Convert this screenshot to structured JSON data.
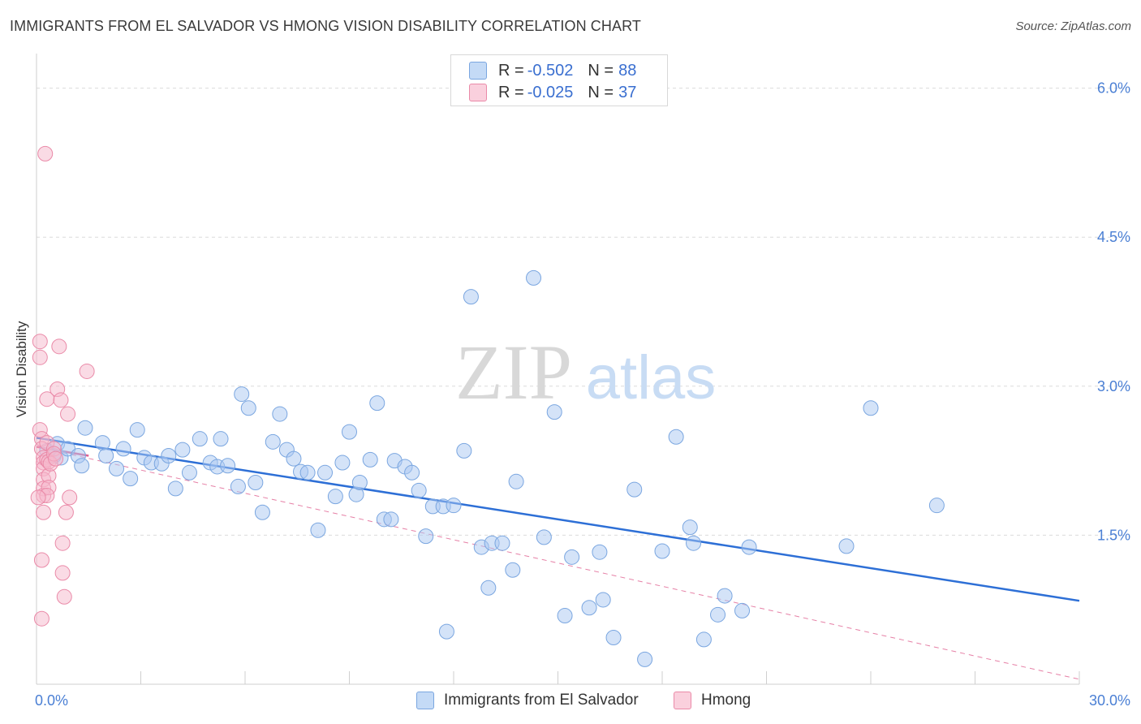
{
  "header": {
    "title": "IMMIGRANTS FROM EL SALVADOR VS HMONG VISION DISABILITY CORRELATION CHART",
    "source": "Source: ZipAtlas.com"
  },
  "watermark": {
    "zip": "ZIP",
    "atlas": "atlas"
  },
  "legend": {
    "rows": [
      {
        "r_label": "R =",
        "r_value": "-0.502",
        "n_label": "N =",
        "n_value": "88",
        "color": "#a9c8f2"
      },
      {
        "r_label": "R =",
        "r_value": "-0.025",
        "n_label": "N =",
        "n_value": "37",
        "color": "#f6b8cb"
      }
    ]
  },
  "bottom_legend": {
    "series1": "Immigrants from El Salvador",
    "series2": "Hmong"
  },
  "colors": {
    "blue_fill": "#a9c8f2",
    "blue_stroke": "#7aa6e0",
    "blue_line": "#2d6fd6",
    "pink_fill": "#f6b8cb",
    "pink_stroke": "#ea8aa8",
    "pink_line": "#e06090",
    "tick": "#4a7fd4"
  },
  "chart_data": {
    "type": "scatter",
    "title": "IMMIGRANTS FROM EL SALVADOR VS HMONG VISION DISABILITY CORRELATION CHART",
    "xlabel": "",
    "ylabel": "Vision Disability",
    "xlim": [
      0,
      30
    ],
    "ylim": [
      0,
      6.25
    ],
    "x_tick_labels": [
      "0.0%",
      "30.0%"
    ],
    "y_ticks": [
      1.5,
      3.0,
      4.5,
      6.0
    ],
    "y_tick_labels": [
      "1.5%",
      "3.0%",
      "4.5%",
      "6.0%"
    ],
    "series": [
      {
        "name": "Immigrants from El Salvador",
        "r": -0.502,
        "n": 88,
        "trend": {
          "x": [
            0,
            30
          ],
          "y": [
            2.48,
            0.84
          ]
        },
        "points": [
          [
            0.3,
            2.35
          ],
          [
            0.5,
            2.3
          ],
          [
            0.6,
            2.42
          ],
          [
            0.7,
            2.28
          ],
          [
            0.9,
            2.37
          ],
          [
            1.2,
            2.3
          ],
          [
            1.3,
            2.2
          ],
          [
            1.4,
            2.58
          ],
          [
            1.9,
            2.43
          ],
          [
            2.0,
            2.3
          ],
          [
            2.3,
            2.17
          ],
          [
            2.5,
            2.37
          ],
          [
            2.7,
            2.07
          ],
          [
            2.9,
            2.56
          ],
          [
            3.1,
            2.28
          ],
          [
            3.3,
            2.23
          ],
          [
            3.6,
            2.22
          ],
          [
            3.8,
            2.3
          ],
          [
            4.0,
            1.97
          ],
          [
            4.2,
            2.36
          ],
          [
            4.4,
            2.13
          ],
          [
            4.7,
            2.47
          ],
          [
            5.0,
            2.23
          ],
          [
            5.2,
            2.19
          ],
          [
            5.3,
            2.47
          ],
          [
            5.5,
            2.2
          ],
          [
            5.8,
            1.99
          ],
          [
            5.9,
            2.92
          ],
          [
            6.1,
            2.78
          ],
          [
            6.3,
            2.03
          ],
          [
            6.5,
            1.73
          ],
          [
            6.8,
            2.44
          ],
          [
            7.0,
            2.72
          ],
          [
            7.2,
            2.36
          ],
          [
            7.4,
            2.27
          ],
          [
            7.6,
            2.14
          ],
          [
            7.8,
            2.13
          ],
          [
            8.1,
            1.55
          ],
          [
            8.3,
            2.13
          ],
          [
            8.6,
            1.89
          ],
          [
            8.8,
            2.23
          ],
          [
            9.0,
            2.54
          ],
          [
            9.2,
            1.91
          ],
          [
            9.3,
            2.03
          ],
          [
            9.6,
            2.26
          ],
          [
            9.8,
            2.83
          ],
          [
            10.0,
            1.66
          ],
          [
            10.2,
            1.66
          ],
          [
            10.3,
            2.25
          ],
          [
            10.6,
            2.19
          ],
          [
            10.8,
            2.13
          ],
          [
            11.0,
            1.95
          ],
          [
            11.2,
            1.49
          ],
          [
            11.4,
            1.79
          ],
          [
            11.7,
            1.79
          ],
          [
            12.0,
            1.8
          ],
          [
            12.3,
            2.35
          ],
          [
            12.5,
            3.9
          ],
          [
            12.8,
            1.38
          ],
          [
            13.0,
            0.97
          ],
          [
            13.1,
            1.42
          ],
          [
            13.4,
            1.42
          ],
          [
            13.7,
            1.15
          ],
          [
            13.8,
            2.04
          ],
          [
            14.3,
            4.09
          ],
          [
            14.6,
            1.48
          ],
          [
            14.9,
            2.74
          ],
          [
            15.2,
            0.69
          ],
          [
            15.4,
            1.28
          ],
          [
            15.9,
            0.77
          ],
          [
            16.2,
            1.33
          ],
          [
            16.3,
            0.85
          ],
          [
            16.6,
            0.47
          ],
          [
            17.2,
            1.96
          ],
          [
            17.5,
            0.25
          ],
          [
            18.0,
            1.34
          ],
          [
            18.4,
            2.49
          ],
          [
            18.8,
            1.58
          ],
          [
            18.9,
            1.42
          ],
          [
            19.2,
            0.45
          ],
          [
            19.6,
            0.7
          ],
          [
            19.8,
            0.89
          ],
          [
            20.3,
            0.74
          ],
          [
            20.5,
            1.38
          ],
          [
            23.3,
            1.39
          ],
          [
            24.0,
            2.78
          ],
          [
            25.9,
            1.8
          ],
          [
            11.8,
            0.53
          ]
        ]
      },
      {
        "name": "Hmong",
        "r": -0.025,
        "n": 37,
        "trend": {
          "x": [
            0,
            1.5
          ],
          "y": [
            2.39,
            2.3
          ]
        },
        "dashed_trend": {
          "x": [
            0,
            30
          ],
          "y": [
            2.39,
            0.05
          ]
        },
        "points": [
          [
            0.1,
            3.45
          ],
          [
            0.1,
            3.29
          ],
          [
            0.1,
            2.56
          ],
          [
            0.15,
            2.47
          ],
          [
            0.15,
            2.37
          ],
          [
            0.2,
            2.28
          ],
          [
            0.2,
            2.23
          ],
          [
            0.2,
            2.17
          ],
          [
            0.2,
            2.06
          ],
          [
            0.2,
            1.97
          ],
          [
            0.2,
            1.9
          ],
          [
            0.2,
            1.73
          ],
          [
            0.15,
            1.25
          ],
          [
            0.15,
            0.66
          ],
          [
            0.25,
            5.34
          ],
          [
            0.3,
            2.87
          ],
          [
            0.3,
            2.43
          ],
          [
            0.3,
            2.26
          ],
          [
            0.35,
            2.1
          ],
          [
            0.35,
            1.98
          ],
          [
            0.3,
            1.9
          ],
          [
            0.35,
            2.24
          ],
          [
            0.4,
            2.22
          ],
          [
            0.5,
            2.37
          ],
          [
            0.5,
            2.32
          ],
          [
            0.55,
            2.27
          ],
          [
            0.6,
            2.97
          ],
          [
            0.65,
            3.4
          ],
          [
            0.7,
            2.86
          ],
          [
            0.75,
            1.42
          ],
          [
            0.75,
            1.12
          ],
          [
            0.8,
            0.88
          ],
          [
            0.85,
            1.73
          ],
          [
            0.9,
            2.72
          ],
          [
            0.95,
            1.88
          ],
          [
            1.45,
            3.15
          ],
          [
            0.05,
            1.88
          ]
        ]
      }
    ]
  }
}
